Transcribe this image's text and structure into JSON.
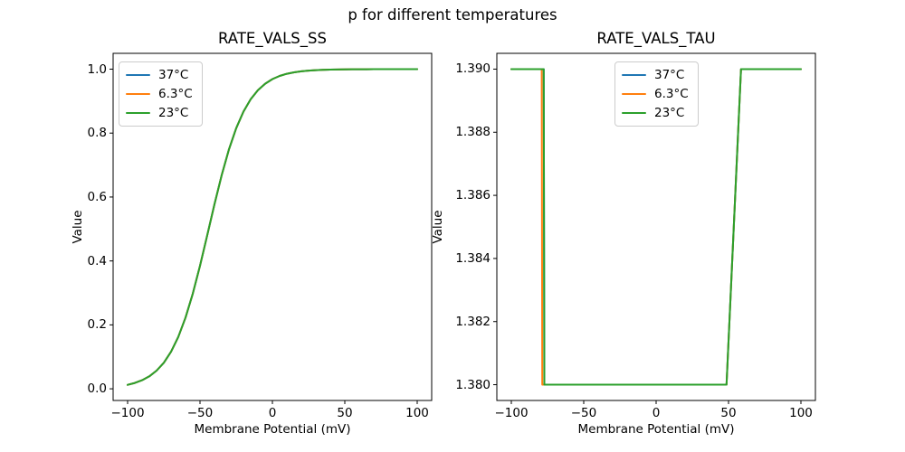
{
  "figure": {
    "suptitle": "p for different temperatures",
    "background": "#ffffff"
  },
  "palette": {
    "series_blue": "#1f77b4",
    "series_orange": "#ff7f0e",
    "series_green": "#2ca02c",
    "axis_color": "#000000",
    "legend_border": "#cccccc"
  },
  "chart_data": [
    {
      "id": "ss",
      "type": "line",
      "title": "RATE_VALS_SS",
      "xlabel": "Membrane Potential (mV)",
      "ylabel": "Value",
      "xlim": [
        -110,
        110
      ],
      "ylim": [
        -0.0365,
        1.0495
      ],
      "grid": false,
      "xticks": {
        "values": [
          -100,
          -50,
          0,
          50,
          100
        ],
        "labels": [
          "−100",
          "−50",
          "0",
          "50",
          "100"
        ]
      },
      "yticks": {
        "values": [
          0.0,
          0.2,
          0.4,
          0.6,
          0.8,
          1.0
        ],
        "labels": [
          "0.0",
          "0.2",
          "0.4",
          "0.6",
          "0.8",
          "1.0"
        ]
      },
      "legend": {
        "loc": "upper-left",
        "entries": [
          "37°C",
          "6.3°C",
          "23°C"
        ]
      },
      "x": [
        -100,
        -95,
        -90,
        -85,
        -80,
        -75,
        -70,
        -65,
        -60,
        -55,
        -50,
        -45,
        -40,
        -35,
        -30,
        -25,
        -20,
        -15,
        -10,
        -5,
        0,
        5,
        10,
        15,
        20,
        25,
        30,
        35,
        40,
        45,
        50,
        55,
        60,
        65,
        70,
        75,
        80,
        85,
        90,
        95,
        100
      ],
      "series": [
        {
          "name": "37°C",
          "color": "#1f77b4",
          "y": [
            0.0124,
            0.0183,
            0.0268,
            0.039,
            0.0567,
            0.0815,
            0.116,
            0.1624,
            0.2227,
            0.2975,
            0.3849,
            0.4805,
            0.5775,
            0.6689,
            0.7491,
            0.8153,
            0.867,
            0.906,
            0.9344,
            0.9546,
            0.9688,
            0.9787,
            0.9855,
            0.9901,
            0.9933,
            0.9955,
            0.9969,
            0.9979,
            0.9986,
            0.999,
            0.9994,
            0.9996,
            0.9997,
            0.9998,
            0.9999,
            0.9999,
            0.9999,
            1.0,
            1.0,
            1.0,
            1.0
          ]
        },
        {
          "name": "6.3°C",
          "color": "#ff7f0e",
          "y": [
            0.0124,
            0.0183,
            0.0268,
            0.039,
            0.0567,
            0.0815,
            0.116,
            0.1624,
            0.2227,
            0.2975,
            0.3849,
            0.4805,
            0.5775,
            0.6689,
            0.7491,
            0.8153,
            0.867,
            0.906,
            0.9344,
            0.9546,
            0.9688,
            0.9787,
            0.9855,
            0.9901,
            0.9933,
            0.9955,
            0.9969,
            0.9979,
            0.9986,
            0.999,
            0.9994,
            0.9996,
            0.9997,
            0.9998,
            0.9999,
            0.9999,
            0.9999,
            1.0,
            1.0,
            1.0,
            1.0
          ]
        },
        {
          "name": "23°C",
          "color": "#2ca02c",
          "y": [
            0.0124,
            0.0183,
            0.0268,
            0.039,
            0.0567,
            0.0815,
            0.116,
            0.1624,
            0.2227,
            0.2975,
            0.3849,
            0.4805,
            0.5775,
            0.6689,
            0.7491,
            0.8153,
            0.867,
            0.906,
            0.9344,
            0.9546,
            0.9688,
            0.9787,
            0.9855,
            0.9901,
            0.9933,
            0.9955,
            0.9969,
            0.9979,
            0.9986,
            0.999,
            0.9994,
            0.9996,
            0.9997,
            0.9998,
            0.9999,
            0.9999,
            0.9999,
            1.0,
            1.0,
            1.0,
            1.0
          ]
        }
      ]
    },
    {
      "id": "tau",
      "type": "line",
      "title": "RATE_VALS_TAU",
      "xlabel": "Membrane Potential (mV)",
      "ylabel": "Value",
      "xlim": [
        -110,
        110
      ],
      "ylim": [
        1.3795,
        1.3905
      ],
      "grid": false,
      "xticks": {
        "values": [
          -100,
          -50,
          0,
          50,
          100
        ],
        "labels": [
          "−100",
          "−50",
          "0",
          "50",
          "100"
        ]
      },
      "yticks": {
        "values": [
          1.38,
          1.382,
          1.384,
          1.386,
          1.388,
          1.39
        ],
        "labels": [
          "1.380",
          "1.382",
          "1.384",
          "1.386",
          "1.388",
          "1.390"
        ]
      },
      "legend": {
        "loc": "upper-center",
        "entries": [
          "37°C",
          "6.3°C",
          "23°C"
        ]
      },
      "series": [
        {
          "name": "37°C",
          "color": "#1f77b4",
          "points": [
            [
              -100,
              1.39
            ],
            [
              -77.6,
              1.39
            ],
            [
              -77.2,
              1.38
            ],
            [
              48.6,
              1.38
            ],
            [
              58.6,
              1.39
            ],
            [
              100,
              1.39
            ]
          ]
        },
        {
          "name": "6.3°C",
          "color": "#ff7f0e",
          "points": [
            [
              -100,
              1.39
            ],
            [
              -79.0,
              1.39
            ],
            [
              -78.6,
              1.38
            ],
            [
              48.6,
              1.38
            ],
            [
              58.6,
              1.39
            ],
            [
              100,
              1.39
            ]
          ]
        },
        {
          "name": "23°C",
          "color": "#2ca02c",
          "points": [
            [
              -100,
              1.39
            ],
            [
              -77.6,
              1.39
            ],
            [
              -77.2,
              1.38
            ],
            [
              48.6,
              1.38
            ],
            [
              58.6,
              1.39
            ],
            [
              100,
              1.39
            ]
          ]
        }
      ]
    }
  ]
}
